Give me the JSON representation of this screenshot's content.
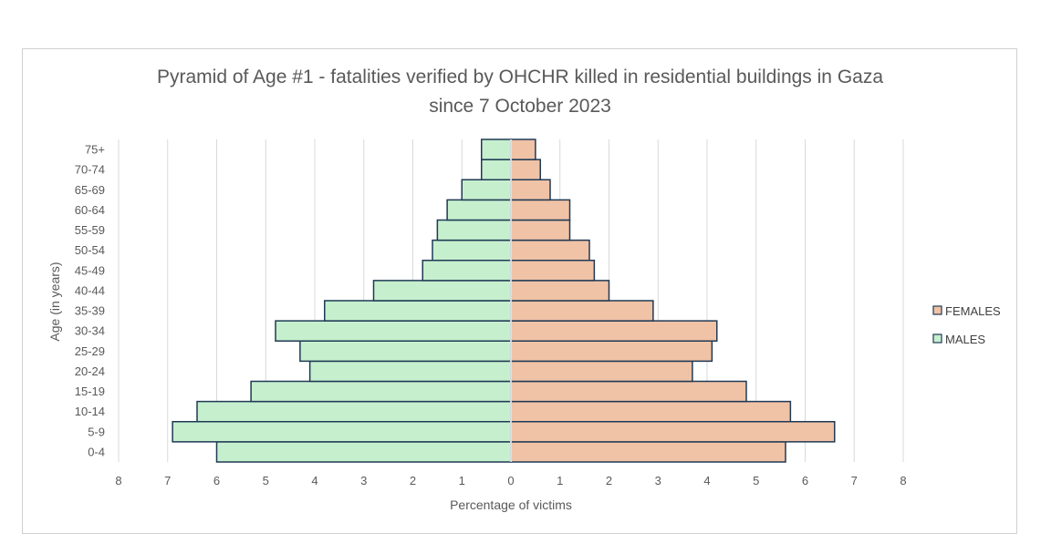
{
  "chart_data": {
    "type": "bar",
    "orientation": "horizontal",
    "title": "Pyramid of Age #1 - fatalities verified by OHCHR killed in residential buildings in Gaza since 7 October 2023",
    "title_lines": [
      "Pyramid of Age #1 - fatalities verified by OHCHR killed in residential buildings in Gaza",
      "since 7 October 2023"
    ],
    "xlabel": "Percentage of victims",
    "ylabel": "Age (in years)",
    "xlim": [
      -8,
      8
    ],
    "x_ticks": [
      "8",
      "7",
      "6",
      "5",
      "4",
      "3",
      "2",
      "1",
      "0",
      "1",
      "2",
      "3",
      "4",
      "5",
      "6",
      "7",
      "8"
    ],
    "grid": "vertical",
    "legend_position": "right",
    "categories": [
      "0-4",
      "5-9",
      "10-14",
      "15-19",
      "20-24",
      "25-29",
      "30-34",
      "35-39",
      "40-44",
      "45-49",
      "50-54",
      "55-59",
      "60-64",
      "65-69",
      "70-74",
      "75+"
    ],
    "series": [
      {
        "name": "MALES",
        "color": "#c6efce",
        "edge_color": "#1f3a55",
        "side": "left",
        "values": [
          6.0,
          6.9,
          6.4,
          5.3,
          4.1,
          4.3,
          4.8,
          3.8,
          2.8,
          1.8,
          1.6,
          1.5,
          1.3,
          1.0,
          0.6,
          0.6
        ]
      },
      {
        "name": "FEMALES",
        "color": "#f0c2a6",
        "edge_color": "#1f3a55",
        "side": "right",
        "values": [
          5.6,
          6.6,
          5.7,
          4.8,
          3.7,
          4.1,
          4.2,
          2.9,
          2.0,
          1.7,
          1.6,
          1.2,
          1.2,
          0.8,
          0.6,
          0.5
        ]
      }
    ],
    "legend_order": [
      "FEMALES",
      "MALES"
    ]
  },
  "colors": {
    "grid": "#d9d9d9",
    "frame": "#d0d0d0",
    "text": "#595959"
  }
}
